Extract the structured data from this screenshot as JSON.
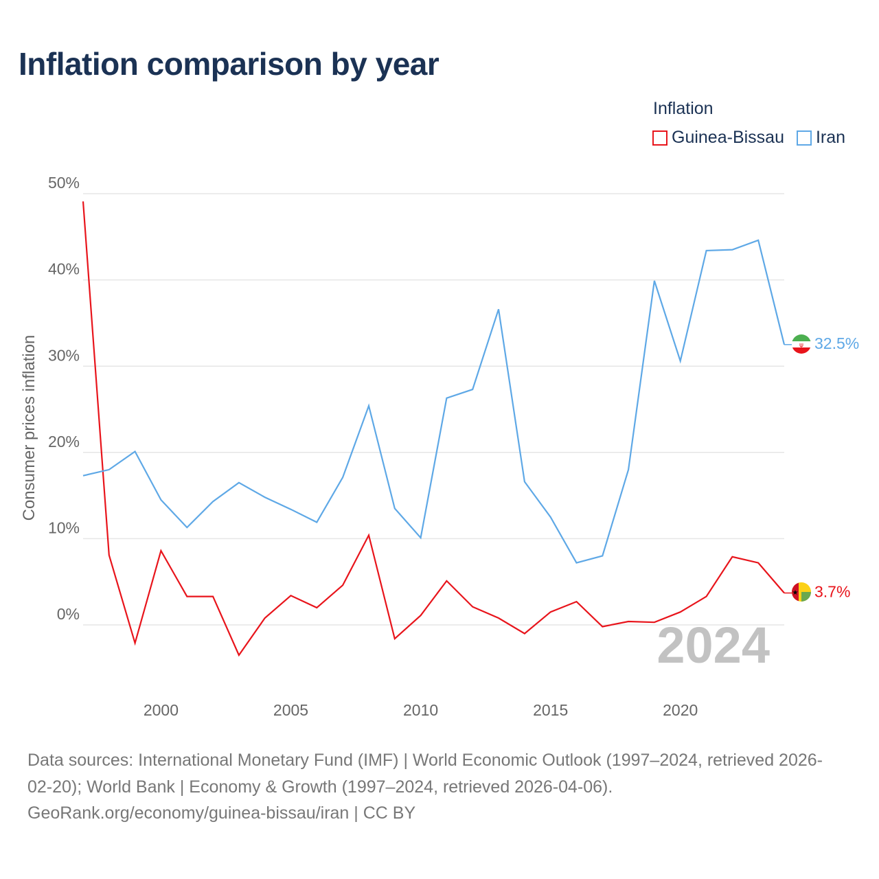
{
  "title": "Inflation comparison by year",
  "legend_title": "Inflation",
  "footer": {
    "line1": "Data sources: International Monetary Fund (IMF) | World Economic Outlook (1997–2024, retrieved 2026-",
    "line2": "02-20); World Bank | Economy & Growth (1997–2024, retrieved 2026-04-06).",
    "line3": "GeoRank.org/economy/guinea-bissau/iran | CC BY"
  },
  "chart_data": {
    "type": "line",
    "title": "Inflation comparison by year",
    "xlabel": "",
    "ylabel": "Consumer prices inflation",
    "xlim": [
      1997,
      2024
    ],
    "ylim": [
      -8,
      50
    ],
    "x_ticks": [
      2000,
      2005,
      2010,
      2015,
      2020
    ],
    "x_tick_labels": [
      "2000",
      "2005",
      "2010",
      "2015",
      "2020"
    ],
    "y_ticks": [
      0,
      10,
      20,
      30,
      40,
      50
    ],
    "y_tick_labels": [
      "0%",
      "10%",
      "20%",
      "30%",
      "40%",
      "50%"
    ],
    "grid": true,
    "year_watermark": "2024",
    "x": [
      1997,
      1998,
      1999,
      2000,
      2001,
      2002,
      2003,
      2004,
      2005,
      2006,
      2007,
      2008,
      2009,
      2010,
      2011,
      2012,
      2013,
      2014,
      2015,
      2016,
      2017,
      2018,
      2019,
      2020,
      2021,
      2022,
      2023,
      2024
    ],
    "series": [
      {
        "name": "Guinea-Bissau",
        "color": "#e8141b",
        "end_label": "3.7%",
        "values": [
          49.1,
          8.1,
          -2.1,
          8.6,
          3.3,
          3.3,
          -3.5,
          0.8,
          3.4,
          2.0,
          4.6,
          10.4,
          -1.6,
          1.1,
          5.1,
          2.1,
          0.8,
          -1.0,
          1.5,
          2.7,
          -0.2,
          0.4,
          0.3,
          1.5,
          3.3,
          7.9,
          7.2,
          3.7
        ]
      },
      {
        "name": "Iran",
        "color": "#5ea8e6",
        "end_label": "32.5%",
        "values": [
          17.3,
          18.0,
          20.1,
          14.5,
          11.3,
          14.3,
          16.5,
          14.8,
          13.4,
          11.9,
          17.1,
          25.4,
          13.5,
          10.1,
          26.3,
          27.3,
          36.6,
          16.6,
          12.5,
          7.2,
          8.0,
          18.0,
          39.9,
          30.6,
          43.4,
          43.5,
          44.6,
          32.5
        ]
      }
    ]
  }
}
